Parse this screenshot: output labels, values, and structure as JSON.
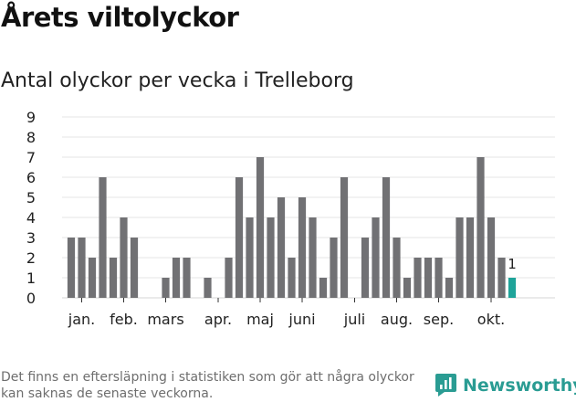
{
  "title": "Årets viltolyckor",
  "subtitle": "Antal olyckor per vecka i Trelleborg",
  "footnote": "Det finns en eftersläpning i statistiken som gör att några olyckor kan saknas de senaste veckorna.",
  "brand": {
    "name": "Newsworthy",
    "icon": "newsworthy-logo-icon",
    "color": "#2a9c93"
  },
  "chart_data": {
    "type": "bar",
    "title": "Antal olyckor per vecka i Trelleborg",
    "xlabel": "",
    "ylabel": "",
    "ylim": [
      0,
      9
    ],
    "yticks": [
      0,
      1,
      2,
      3,
      4,
      5,
      6,
      7,
      8,
      9
    ],
    "grid": true,
    "bar_color": "#717174",
    "highlight_color": "#1fa49a",
    "values": [
      3,
      3,
      2,
      6,
      2,
      4,
      3,
      0,
      0,
      1,
      2,
      2,
      0,
      1,
      0,
      2,
      6,
      4,
      7,
      4,
      5,
      2,
      5,
      4,
      1,
      3,
      6,
      0,
      3,
      4,
      6,
      3,
      1,
      2,
      2,
      2,
      1,
      4,
      4,
      7,
      4,
      2,
      1
    ],
    "highlight_index": 42,
    "highlight_label": "1",
    "month_labels": [
      {
        "label": "jan.",
        "week": 1
      },
      {
        "label": "feb.",
        "week": 5
      },
      {
        "label": "mars",
        "week": 9
      },
      {
        "label": "apr.",
        "week": 14
      },
      {
        "label": "maj",
        "week": 18
      },
      {
        "label": "juni",
        "week": 22
      },
      {
        "label": "juli",
        "week": 27
      },
      {
        "label": "aug.",
        "week": 31
      },
      {
        "label": "sep.",
        "week": 35
      },
      {
        "label": "okt.",
        "week": 40
      }
    ]
  }
}
